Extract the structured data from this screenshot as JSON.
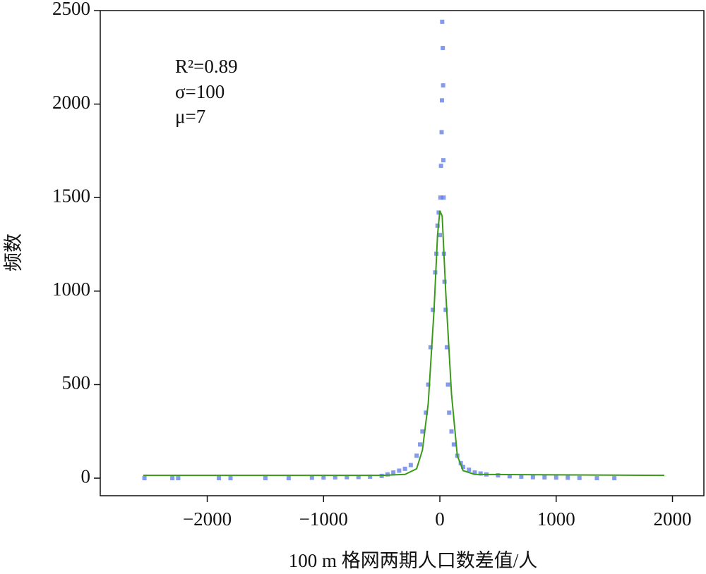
{
  "chart_data": {
    "type": "scatter",
    "xlabel": "100 m 格网两期人口数差值/人",
    "ylabel": "频数",
    "annotations": [
      "R²=0.89",
      "σ=100",
      "μ=7"
    ],
    "xlim": [
      -2920,
      2270
    ],
    "ylim": [
      -94,
      2500
    ],
    "xticks": [
      {
        "value": -2000,
        "label": "−2000"
      },
      {
        "value": -1000,
        "label": "−1000"
      },
      0,
      1000,
      2000
    ],
    "yticks": [
      0,
      500,
      1000,
      1500,
      2000,
      2500
    ],
    "series": [
      {
        "type": "scatter",
        "color": "#4f6fe8",
        "x": [
          -2540,
          -2300,
          -2250,
          -1900,
          -1800,
          -1500,
          -1300,
          -1100,
          -1000,
          -900,
          -800,
          -700,
          -600,
          -500,
          -450,
          -400,
          -350,
          -300,
          -250,
          -200,
          -170,
          -150,
          -120,
          -100,
          -80,
          -60,
          -40,
          -30,
          -20,
          -10,
          0,
          5,
          10,
          15,
          18,
          20,
          25,
          28,
          30,
          32,
          35,
          40,
          50,
          60,
          70,
          80,
          100,
          120,
          150,
          180,
          200,
          250,
          300,
          350,
          400,
          500,
          600,
          700,
          800,
          900,
          1000,
          1100,
          1200,
          1350,
          1500
        ],
        "values": [
          0,
          0,
          0,
          0,
          0,
          0,
          0,
          2,
          3,
          4,
          5,
          6,
          8,
          12,
          20,
          30,
          40,
          50,
          70,
          120,
          180,
          250,
          350,
          500,
          700,
          900,
          1100,
          1200,
          1350,
          1420,
          1300,
          1500,
          1670,
          1850,
          2020,
          2440,
          2300,
          2100,
          1700,
          1500,
          1200,
          1050,
          900,
          700,
          500,
          350,
          250,
          180,
          120,
          80,
          60,
          45,
          30,
          25,
          20,
          15,
          10,
          8,
          5,
          4,
          3,
          2,
          1,
          0,
          0
        ]
      },
      {
        "type": "line",
        "color": "#3a9a1a",
        "x": [
          -2550,
          -500,
          -300,
          -200,
          -150,
          -100,
          -50,
          -20,
          0,
          20,
          50,
          100,
          150,
          200,
          300,
          1930
        ],
        "values": [
          15,
          15,
          20,
          50,
          150,
          400,
          900,
          1300,
          1430,
          1400,
          1000,
          450,
          120,
          40,
          20,
          15
        ]
      }
    ]
  }
}
